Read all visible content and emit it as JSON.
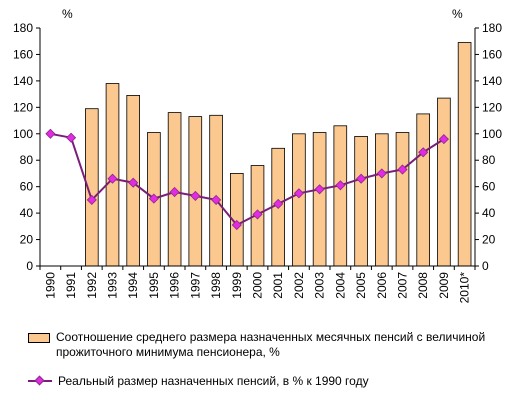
{
  "chart_data": {
    "type": "bar+line",
    "categories": [
      "1990",
      "1991",
      "1992",
      "1993",
      "1994",
      "1995",
      "1996",
      "1997",
      "1998",
      "1999",
      "2000",
      "2001",
      "2002",
      "2003",
      "2004",
      "2005",
      "2006",
      "2007",
      "2008",
      "2009",
      "2010*"
    ],
    "series": [
      {
        "name": "Соотношение среднего размера назначенных месячных пенсий с величиной прожиточного минимума пенсионера, %",
        "type": "bar",
        "values": [
          null,
          null,
          119,
          138,
          129,
          101,
          116,
          113,
          114,
          70,
          76,
          89,
          100,
          101,
          106,
          98,
          100,
          101,
          115,
          127,
          169
        ]
      },
      {
        "name": "Реальный размер назначенных пенсий, в % к 1990 году",
        "type": "line",
        "values": [
          100,
          97,
          50,
          66,
          63,
          51,
          56,
          53,
          50,
          31,
          39,
          47,
          55,
          58,
          61,
          66,
          70,
          73,
          86,
          96,
          null
        ]
      }
    ],
    "ylim": [
      0,
      180
    ],
    "yticks": [
      "0",
      "20",
      "40",
      "60",
      "80",
      "100",
      "120",
      "140",
      "160",
      "180"
    ],
    "left_unit": "%",
    "right_unit": "%",
    "grid": false,
    "legend_position": "bottom",
    "colors": {
      "bar_fill": "#FBC88F",
      "bar_stroke": "#000000",
      "line": "#7A1E7A",
      "marker": "#E22BE2"
    }
  },
  "legend": {
    "bar_label": "Соотношение среднего размера назначенных месячных пенсий с величиной прожиточного минимума пенсионера, %",
    "line_label": "Реальный размер назначенных пенсий, в % к 1990 году"
  }
}
